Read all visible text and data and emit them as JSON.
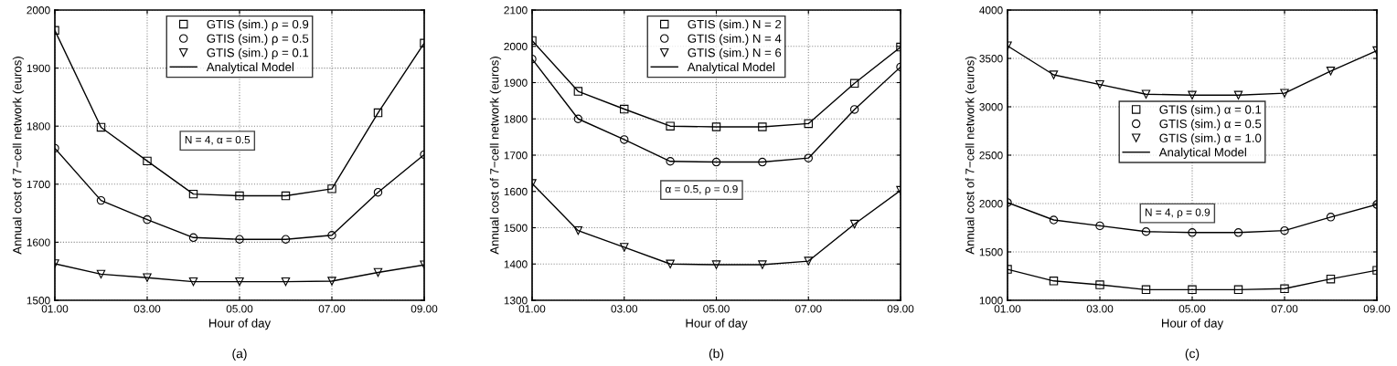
{
  "chart_data": [
    {
      "type": "line",
      "xlabel": "Hour of day",
      "ylabel": "Annual cost of 7−cell network (euros)",
      "x": [
        1,
        2,
        3,
        4,
        5,
        6,
        7,
        8,
        9
      ],
      "xlim": [
        1,
        9
      ],
      "xticks": [
        {
          "value": 1,
          "label": "01.00"
        },
        {
          "value": 3,
          "label": "03.00"
        },
        {
          "value": 5,
          "label": "05.00"
        },
        {
          "value": 7,
          "label": "07.00"
        },
        {
          "value": 9,
          "label": "09.00"
        }
      ],
      "ylim": [
        1500,
        2000
      ],
      "yticks": [
        1500,
        1600,
        1700,
        1800,
        1900,
        2000
      ],
      "grid": true,
      "legend": "top",
      "annotations": [
        "N = 4, α = 0.5",
        "(a)"
      ],
      "series": [
        {
          "name": "GTIS (sim.) ρ = 0.9",
          "type": "scatter",
          "marker": "square",
          "color": "#000000",
          "values": [
            1965,
            1798,
            1740,
            1683,
            1680,
            1680,
            1692,
            1823,
            1943
          ]
        },
        {
          "name": "GTIS (sim.) ρ = 0.5",
          "type": "scatter",
          "marker": "circle",
          "color": "#000000",
          "values": [
            1762,
            1672,
            1639,
            1608,
            1605,
            1605,
            1612,
            1686,
            1751
          ]
        },
        {
          "name": "GTIS (sim.) ρ = 0.1",
          "type": "scatter",
          "marker": "triangle",
          "color": "#000000",
          "values": [
            1563,
            1545,
            1539,
            1532,
            1532,
            1532,
            1533,
            1548,
            1561
          ]
        },
        {
          "name": "Analytical Model",
          "color": "#000000",
          "values": [
            1965,
            1798,
            1740,
            1683,
            1680,
            1680,
            1692,
            1823,
            1943
          ]
        },
        {
          "color": "#000000",
          "values": [
            1762,
            1672,
            1639,
            1608,
            1605,
            1605,
            1612,
            1686,
            1751
          ]
        },
        {
          "color": "#000000",
          "values": [
            1563,
            1545,
            1539,
            1532,
            1532,
            1532,
            1533,
            1548,
            1561
          ]
        }
      ]
    },
    {
      "type": "line",
      "xlabel": "Hour of day",
      "ylabel": "Annual cost of 7−cell network (euros)",
      "x": [
        1,
        2,
        3,
        4,
        5,
        6,
        7,
        8,
        9
      ],
      "xlim": [
        1,
        9
      ],
      "xticks": [
        {
          "value": 1,
          "label": "01.00"
        },
        {
          "value": 3,
          "label": "03.00"
        },
        {
          "value": 5,
          "label": "05.00"
        },
        {
          "value": 7,
          "label": "07.00"
        },
        {
          "value": 9,
          "label": "09.00"
        }
      ],
      "ylim": [
        1300,
        2100
      ],
      "yticks": [
        1300,
        1400,
        1500,
        1600,
        1700,
        1800,
        1900,
        2000,
        2100
      ],
      "grid": true,
      "legend": "top",
      "annotations": [
        "α = 0.5, ρ = 0.9",
        "(b)"
      ],
      "series": [
        {
          "name": "GTIS (sim.) N = 2",
          "type": "scatter",
          "marker": "square",
          "color": "#000000",
          "values": [
            2016,
            1876,
            1827,
            1780,
            1778,
            1778,
            1787,
            1898,
            1998
          ]
        },
        {
          "name": "GTIS (sim.) N = 4",
          "type": "scatter",
          "marker": "circle",
          "color": "#000000",
          "values": [
            1965,
            1800,
            1743,
            1683,
            1681,
            1681,
            1692,
            1826,
            1943
          ]
        },
        {
          "name": "GTIS (sim.) N = 6",
          "type": "scatter",
          "marker": "triangle",
          "color": "#000000",
          "values": [
            1622,
            1492,
            1446,
            1400,
            1398,
            1398,
            1408,
            1510,
            1603
          ]
        },
        {
          "name": "Analytical Model",
          "color": "#000000",
          "values": [
            2016,
            1876,
            1827,
            1780,
            1778,
            1778,
            1787,
            1898,
            1998
          ]
        },
        {
          "color": "#000000",
          "values": [
            1965,
            1800,
            1743,
            1683,
            1681,
            1681,
            1692,
            1826,
            1943
          ]
        },
        {
          "color": "#000000",
          "values": [
            1622,
            1492,
            1446,
            1400,
            1398,
            1398,
            1408,
            1510,
            1603
          ]
        }
      ]
    },
    {
      "type": "line",
      "xlabel": "Hour of day",
      "ylabel": "Annual cost of 7−cell network (euros)",
      "x": [
        1,
        2,
        3,
        4,
        5,
        6,
        7,
        8,
        9
      ],
      "xlim": [
        1,
        9
      ],
      "xticks": [
        {
          "value": 1,
          "label": "01.00"
        },
        {
          "value": 3,
          "label": "03.00"
        },
        {
          "value": 5,
          "label": "05.00"
        },
        {
          "value": 7,
          "label": "07.00"
        },
        {
          "value": 9,
          "label": "09.00"
        }
      ],
      "ylim": [
        1000,
        4000
      ],
      "yticks": [
        1000,
        1500,
        2000,
        2500,
        3000,
        3500,
        4000
      ],
      "grid": true,
      "legend": "center",
      "annotations": [
        "N = 4, ρ = 0.9",
        "(c)"
      ],
      "series": [
        {
          "name": "GTIS (sim.) α = 0.1",
          "type": "scatter",
          "marker": "square",
          "color": "#000000",
          "values": [
            1320,
            1200,
            1160,
            1110,
            1110,
            1110,
            1120,
            1220,
            1310
          ]
        },
        {
          "name": "GTIS (sim.) α = 0.5",
          "type": "scatter",
          "marker": "circle",
          "color": "#000000",
          "values": [
            2010,
            1830,
            1770,
            1710,
            1700,
            1700,
            1720,
            1860,
            1990
          ]
        },
        {
          "name": "GTIS (sim.) α = 1.0",
          "type": "scatter",
          "marker": "triangle",
          "color": "#000000",
          "values": [
            3630,
            3330,
            3230,
            3130,
            3120,
            3120,
            3140,
            3370,
            3580
          ]
        },
        {
          "name": "Analytical Model",
          "color": "#000000",
          "values": [
            1320,
            1200,
            1160,
            1110,
            1110,
            1110,
            1120,
            1220,
            1310
          ]
        },
        {
          "color": "#000000",
          "values": [
            2010,
            1830,
            1770,
            1710,
            1700,
            1700,
            1720,
            1860,
            1990
          ]
        },
        {
          "color": "#000000",
          "values": [
            3630,
            3330,
            3230,
            3130,
            3120,
            3120,
            3140,
            3370,
            3580
          ]
        }
      ]
    }
  ]
}
